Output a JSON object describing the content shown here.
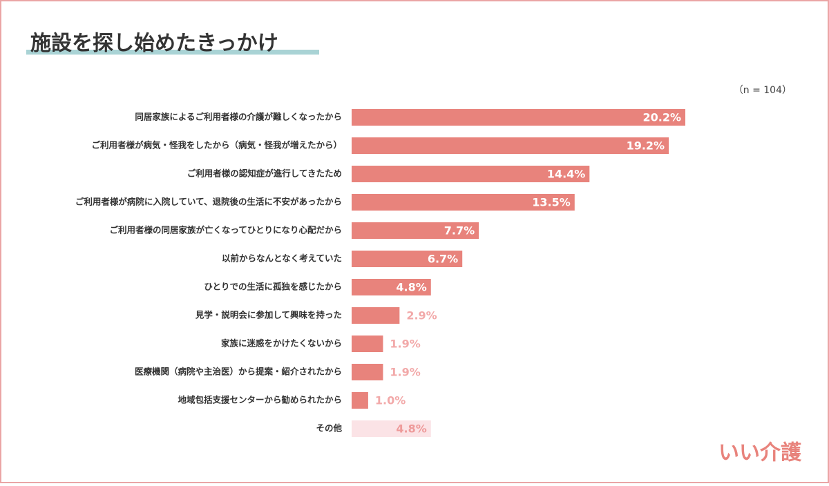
{
  "chart_data": {
    "type": "bar",
    "orientation": "horizontal",
    "title": "施設を探し始めたきっかけ",
    "annotation": "（n = 104）",
    "categories": [
      "同居家族によるご利用者様の介護が難しくなったから",
      "ご利用者様が病気・怪我をしたから（病気・怪我が増えたから）",
      "ご利用者様の認知症が進行してきたため",
      "ご利用者様が病院に入院していて、退院後の生活に不安があったから",
      "ご利用者様の同居家族が亡くなってひとりになり心配だから",
      "以前からなんとなく考えていた",
      "ひとりでの生活に孤独を感じたから",
      "見学・説明会に参加して興味を持った",
      "家族に迷惑をかけたくないから",
      "医療機関（病院や主治医）から提案・紹介されたから",
      "地域包括支援センターから勧められたから",
      "その他"
    ],
    "values": [
      20.2,
      19.2,
      14.4,
      13.5,
      7.7,
      6.7,
      4.8,
      2.9,
      1.9,
      1.9,
      1.0,
      4.8
    ],
    "value_labels": [
      "20.2%",
      "19.2%",
      "14.4%",
      "13.5%",
      "7.7%",
      "6.7%",
      "4.8%",
      "2.9%",
      "1.9%",
      "1.9%",
      "1.0%",
      "4.8%"
    ],
    "colors": [
      "#e8837c",
      "#e8837c",
      "#e8837c",
      "#e8837c",
      "#e8837c",
      "#e8837c",
      "#e8837c",
      "#e8837c",
      "#e8837c",
      "#e8837c",
      "#e8837c",
      "#fbe3e6"
    ],
    "value_label_colors": [
      "#ffffff",
      "#ffffff",
      "#ffffff",
      "#ffffff",
      "#ffffff",
      "#ffffff",
      "#ffffff",
      "#f2a9a9",
      "#f2a9a9",
      "#f2a9a9",
      "#f2a9a9",
      "#ee9a9a"
    ]
  },
  "brand": "いい介護"
}
